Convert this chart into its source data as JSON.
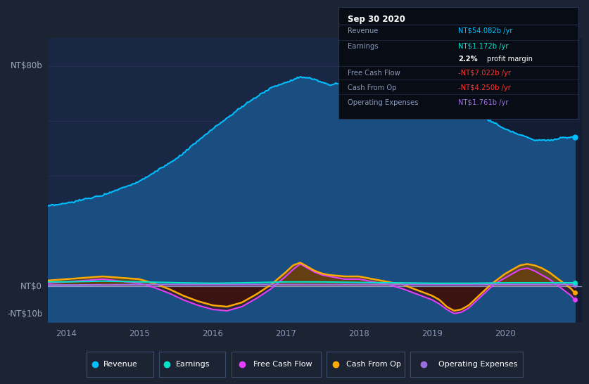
{
  "bg_color": "#1c2333",
  "plot_bg_color": "#1a2744",
  "highlight_bg": "#232f4a",
  "title_label": "NT$80b",
  "zero_label": "NT$0",
  "neg_label": "-NT$10b",
  "x_ticks": [
    "2014",
    "2015",
    "2016",
    "2017",
    "2018",
    "2019",
    "2020"
  ],
  "legend_items": [
    "Revenue",
    "Earnings",
    "Free Cash Flow",
    "Cash From Op",
    "Operating Expenses"
  ],
  "legend_colors": [
    "#00bfff",
    "#00e5cc",
    "#e040fb",
    "#ffaa00",
    "#9c6fde"
  ],
  "tooltip_title": "Sep 30 2020",
  "revenue_color": "#00bfff",
  "revenue_fill": "#1a5080",
  "earnings_color": "#00e5cc",
  "fcf_color": "#e040fb",
  "cashop_color": "#ffaa00",
  "opex_color": "#9c6fde",
  "grid_color": "#263050",
  "zero_line_color": "#8899bb"
}
